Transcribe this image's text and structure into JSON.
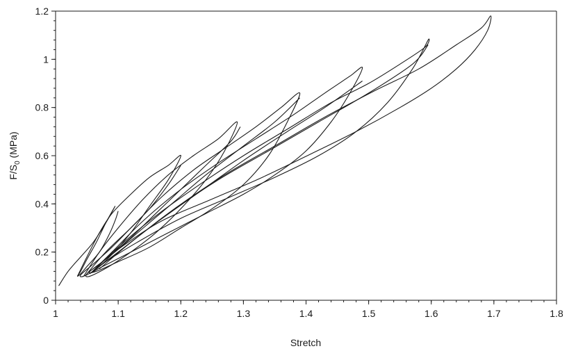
{
  "chart_data": {
    "type": "line",
    "title": "",
    "xlabel": "Stretch",
    "ylabel": {
      "prefix": "F/S",
      "subscript": "0",
      "suffix": " (MPa)"
    },
    "xlim": [
      1,
      1.8
    ],
    "ylim": [
      0,
      1.2
    ],
    "xticks": [
      "1",
      "1.1",
      "1.2",
      "1.3",
      "1.4",
      "1.5",
      "1.6",
      "1.7",
      "1.8"
    ],
    "yticks": [
      "0",
      "0.2",
      "0.4",
      "0.6",
      "0.8",
      "1",
      "1.2"
    ],
    "x_minor_step": 0.02,
    "y_minor_step": 0.04,
    "grid": false,
    "series": [
      {
        "points": [
          [
            1.005,
            0.06
          ],
          [
            1.02,
            0.12
          ],
          [
            1.04,
            0.18
          ],
          [
            1.06,
            0.24
          ],
          [
            1.08,
            0.32
          ],
          [
            1.095,
            0.39
          ],
          [
            1.08,
            0.32
          ],
          [
            1.065,
            0.24
          ],
          [
            1.05,
            0.17
          ],
          [
            1.04,
            0.12
          ],
          [
            1.035,
            0.1
          ],
          [
            1.04,
            0.11
          ],
          [
            1.05,
            0.14
          ],
          [
            1.07,
            0.2
          ],
          [
            1.085,
            0.27
          ],
          [
            1.095,
            0.33
          ],
          [
            1.1,
            0.37
          ]
        ]
      },
      {
        "points": [
          [
            1.035,
            0.1
          ],
          [
            1.05,
            0.18
          ],
          [
            1.07,
            0.28
          ],
          [
            1.09,
            0.36
          ],
          [
            1.12,
            0.44
          ],
          [
            1.15,
            0.51
          ],
          [
            1.18,
            0.56
          ],
          [
            1.2,
            0.6
          ],
          [
            1.18,
            0.5
          ],
          [
            1.15,
            0.39
          ],
          [
            1.12,
            0.28
          ],
          [
            1.09,
            0.19
          ],
          [
            1.065,
            0.13
          ],
          [
            1.045,
            0.1
          ],
          [
            1.04,
            0.105
          ],
          [
            1.06,
            0.15
          ],
          [
            1.09,
            0.22
          ],
          [
            1.12,
            0.3
          ],
          [
            1.15,
            0.38
          ],
          [
            1.18,
            0.48
          ],
          [
            1.2,
            0.56
          ]
        ]
      },
      {
        "points": [
          [
            1.045,
            0.1
          ],
          [
            1.07,
            0.2
          ],
          [
            1.1,
            0.3
          ],
          [
            1.14,
            0.42
          ],
          [
            1.18,
            0.52
          ],
          [
            1.22,
            0.6
          ],
          [
            1.26,
            0.67
          ],
          [
            1.29,
            0.74
          ],
          [
            1.27,
            0.62
          ],
          [
            1.24,
            0.5
          ],
          [
            1.2,
            0.38
          ],
          [
            1.16,
            0.28
          ],
          [
            1.12,
            0.2
          ],
          [
            1.085,
            0.14
          ],
          [
            1.055,
            0.1
          ],
          [
            1.05,
            0.11
          ],
          [
            1.08,
            0.17
          ],
          [
            1.12,
            0.26
          ],
          [
            1.16,
            0.36
          ],
          [
            1.2,
            0.46
          ],
          [
            1.24,
            0.56
          ],
          [
            1.28,
            0.66
          ],
          [
            1.295,
            0.72
          ]
        ]
      },
      {
        "points": [
          [
            1.05,
            0.11
          ],
          [
            1.08,
            0.2
          ],
          [
            1.12,
            0.3
          ],
          [
            1.17,
            0.43
          ],
          [
            1.22,
            0.54
          ],
          [
            1.27,
            0.63
          ],
          [
            1.32,
            0.72
          ],
          [
            1.36,
            0.8
          ],
          [
            1.39,
            0.86
          ],
          [
            1.37,
            0.74
          ],
          [
            1.34,
            0.6
          ],
          [
            1.3,
            0.48
          ],
          [
            1.25,
            0.38
          ],
          [
            1.2,
            0.3
          ],
          [
            1.15,
            0.22
          ],
          [
            1.1,
            0.16
          ],
          [
            1.065,
            0.12
          ],
          [
            1.055,
            0.12
          ],
          [
            1.09,
            0.19
          ],
          [
            1.14,
            0.3
          ],
          [
            1.19,
            0.41
          ],
          [
            1.24,
            0.52
          ],
          [
            1.3,
            0.64
          ],
          [
            1.35,
            0.74
          ],
          [
            1.39,
            0.84
          ]
        ]
      },
      {
        "points": [
          [
            1.055,
            0.11
          ],
          [
            1.09,
            0.2
          ],
          [
            1.14,
            0.33
          ],
          [
            1.2,
            0.46
          ],
          [
            1.26,
            0.57
          ],
          [
            1.32,
            0.67
          ],
          [
            1.38,
            0.77
          ],
          [
            1.43,
            0.86
          ],
          [
            1.47,
            0.93
          ],
          [
            1.49,
            0.965
          ],
          [
            1.47,
            0.86
          ],
          [
            1.44,
            0.74
          ],
          [
            1.4,
            0.62
          ],
          [
            1.35,
            0.52
          ],
          [
            1.3,
            0.44
          ],
          [
            1.24,
            0.36
          ],
          [
            1.18,
            0.28
          ],
          [
            1.12,
            0.2
          ],
          [
            1.075,
            0.14
          ],
          [
            1.06,
            0.12
          ],
          [
            1.1,
            0.2
          ],
          [
            1.16,
            0.32
          ],
          [
            1.23,
            0.45
          ],
          [
            1.3,
            0.58
          ],
          [
            1.37,
            0.7
          ],
          [
            1.43,
            0.8
          ],
          [
            1.49,
            0.91
          ]
        ]
      },
      {
        "points": [
          [
            1.06,
            0.12
          ],
          [
            1.1,
            0.22
          ],
          [
            1.16,
            0.35
          ],
          [
            1.23,
            0.48
          ],
          [
            1.3,
            0.6
          ],
          [
            1.37,
            0.71
          ],
          [
            1.44,
            0.82
          ],
          [
            1.5,
            0.9
          ],
          [
            1.55,
            0.98
          ],
          [
            1.59,
            1.05
          ],
          [
            1.595,
            1.08
          ],
          [
            1.57,
            0.96
          ],
          [
            1.53,
            0.82
          ],
          [
            1.48,
            0.7
          ],
          [
            1.42,
            0.6
          ],
          [
            1.35,
            0.51
          ],
          [
            1.28,
            0.43
          ],
          [
            1.2,
            0.34
          ],
          [
            1.13,
            0.24
          ],
          [
            1.08,
            0.16
          ],
          [
            1.065,
            0.13
          ],
          [
            1.11,
            0.22
          ],
          [
            1.18,
            0.36
          ],
          [
            1.26,
            0.5
          ],
          [
            1.34,
            0.62
          ],
          [
            1.42,
            0.74
          ],
          [
            1.5,
            0.86
          ],
          [
            1.57,
            0.98
          ],
          [
            1.595,
            1.06
          ]
        ]
      },
      {
        "points": [
          [
            1.07,
            0.13
          ],
          [
            1.12,
            0.24
          ],
          [
            1.19,
            0.38
          ],
          [
            1.27,
            0.52
          ],
          [
            1.35,
            0.64
          ],
          [
            1.43,
            0.76
          ],
          [
            1.51,
            0.87
          ],
          [
            1.58,
            0.96
          ],
          [
            1.64,
            1.06
          ],
          [
            1.68,
            1.13
          ],
          [
            1.695,
            1.18
          ],
          [
            1.69,
            1.12
          ],
          [
            1.67,
            1.04
          ],
          [
            1.64,
            0.96
          ],
          [
            1.6,
            0.88
          ],
          [
            1.55,
            0.8
          ],
          [
            1.48,
            0.7
          ],
          [
            1.41,
            0.61
          ],
          [
            1.33,
            0.51
          ],
          [
            1.25,
            0.42
          ],
          [
            1.17,
            0.33
          ],
          [
            1.11,
            0.23
          ],
          [
            1.075,
            0.16
          ]
        ]
      }
    ]
  }
}
